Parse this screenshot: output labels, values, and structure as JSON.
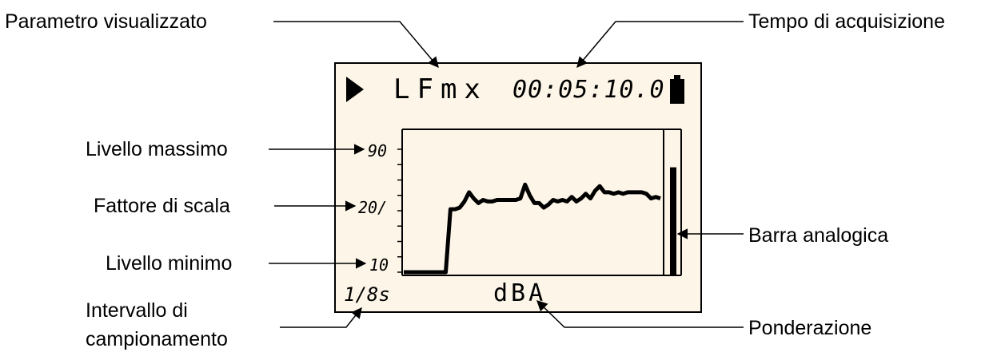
{
  "callouts": {
    "parametro": "Parametro visualizzato",
    "tempo": "Tempo di acquisizione",
    "livello_massimo": "Livello massimo",
    "fattore_scala": "Fattore di scala",
    "livello_minimo": "Livello minimo",
    "intervallo_line1": "Intervallo di",
    "intervallo_line2": "campionamento",
    "barra": "Barra analogica",
    "ponderazione": "Ponderazione"
  },
  "display": {
    "status_icon": "play-icon",
    "parameter": "LFmx",
    "time": "00:05:10.0",
    "battery_icon": "battery-icon",
    "scale_max": "90",
    "scale_factor": "20/",
    "scale_min": "10",
    "interval": "1/8s",
    "weighting": "dBA",
    "analog_bar_level": 0.74
  },
  "chart_data": {
    "type": "line",
    "ylim": [
      10,
      90
    ],
    "y_tick_labels": [
      "90",
      "20/",
      "10"
    ],
    "xlabel": "",
    "ylabel": "",
    "x": [
      0,
      1,
      2,
      3,
      4,
      5,
      6,
      7,
      8,
      9,
      10,
      11,
      12,
      13,
      14,
      15,
      16,
      17,
      18,
      19,
      20,
      21,
      22,
      23,
      24,
      25,
      26,
      27,
      28,
      29,
      30,
      31,
      32,
      33,
      34,
      35,
      36,
      37,
      38,
      39,
      40,
      41,
      42,
      43,
      44,
      45,
      46,
      47,
      48,
      49,
      50,
      51,
      52,
      53,
      54,
      55
    ],
    "series": [
      {
        "values": [
          10,
          10,
          10,
          10,
          10,
          10,
          10,
          10,
          10,
          10,
          51,
          51,
          52,
          56,
          62,
          58,
          55,
          57,
          56,
          56,
          57,
          57,
          57,
          57,
          57,
          58,
          67,
          60,
          55,
          55,
          52,
          54,
          57,
          56,
          57,
          56,
          59,
          56,
          58,
          61,
          58,
          63,
          66,
          62,
          62,
          61,
          62,
          61,
          62,
          62,
          62,
          62,
          61,
          58,
          59,
          58
        ]
      }
    ]
  }
}
